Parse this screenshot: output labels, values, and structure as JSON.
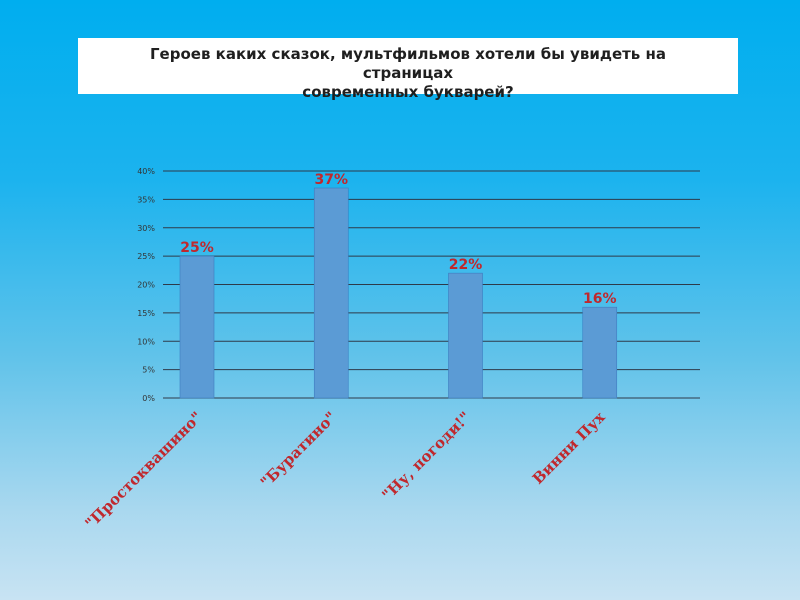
{
  "title": {
    "line1": "Героев каких сказок, мультфильмов хотели бы увидеть на",
    "line2": "страницах",
    "line3": "современных букварей?"
  },
  "colors": {
    "bar": "#5b9bd5",
    "bar_edge": "#3c7cc0",
    "grid": "#2e3a4a",
    "label": "#c0282d"
  },
  "chart_data": {
    "type": "bar",
    "title": "Героев каких сказок, мультфильмов хотели бы увидеть на страницах современных букварей?",
    "categories": [
      "\"Простоквашино\"",
      "\"Буратино\"",
      "\"Ну, погоди!\"",
      "Винни Пух"
    ],
    "values": [
      25,
      37,
      22,
      16
    ],
    "value_labels": [
      "25%",
      "37%",
      "22%",
      "16%"
    ],
    "y_ticks": [
      "0%",
      "5%",
      "10%",
      "15%",
      "20%",
      "25%",
      "30%",
      "35%",
      "40%"
    ],
    "ylim": [
      0,
      40
    ],
    "xlabel": "",
    "ylabel": "",
    "grid": true,
    "legend": "none"
  }
}
